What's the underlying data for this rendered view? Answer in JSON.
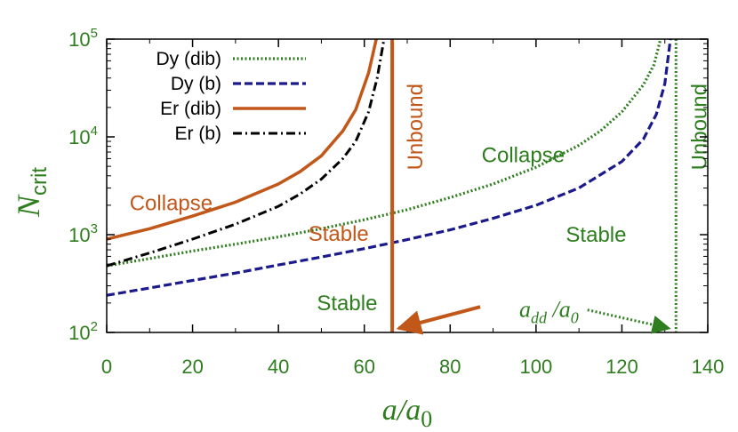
{
  "chart_data": {
    "type": "line",
    "xlabel": "a/a_0",
    "ylabel": "N_crit",
    "xlim": [
      0,
      140
    ],
    "ylim": [
      100,
      100000
    ],
    "yscale": "log",
    "x_ticks": [
      "0",
      "20",
      "40",
      "60",
      "80",
      "100",
      "120",
      "140"
    ],
    "y_ticks": [
      {
        "base": "10",
        "exp": "2"
      },
      {
        "base": "10",
        "exp": "3"
      },
      {
        "base": "10",
        "exp": "4"
      },
      {
        "base": "10",
        "exp": "5"
      }
    ],
    "grid": false,
    "legend_position": "top-left",
    "series": [
      {
        "name": "Dy (dib)",
        "color": "#2e7d1e",
        "dash": "dotted",
        "x": [
          0,
          10,
          20,
          30,
          40,
          50,
          60,
          70,
          80,
          90,
          100,
          110,
          115,
          120,
          125,
          127.5,
          129
        ],
        "y": [
          480,
          570,
          680,
          800,
          950,
          1150,
          1420,
          1800,
          2400,
          3300,
          4900,
          8200,
          11500,
          18000,
          34000,
          55000,
          100000
        ]
      },
      {
        "name": "Dy (b)",
        "color": "#1a1a8c",
        "dash": "dashed",
        "x": [
          0,
          10,
          20,
          30,
          40,
          50,
          60,
          70,
          80,
          90,
          100,
          110,
          120,
          125,
          128,
          130,
          131.3
        ],
        "y": [
          240,
          285,
          340,
          405,
          490,
          590,
          720,
          890,
          1120,
          1470,
          2000,
          3000,
          5600,
          9500,
          17000,
          35000,
          100000
        ]
      },
      {
        "name": "Er (dib)",
        "color": "#c2571a",
        "dash": "solid",
        "x": [
          0,
          10,
          20,
          30,
          40,
          45,
          50,
          55,
          58,
          61,
          62.8
        ],
        "y": [
          900,
          1150,
          1550,
          2150,
          3300,
          4400,
          6400,
          11500,
          19000,
          45000,
          100000
        ]
      },
      {
        "name": "Er (b)",
        "color": "#000000",
        "dash": "dashdot",
        "x": [
          0,
          10,
          20,
          30,
          40,
          45,
          50,
          55,
          58,
          61,
          63,
          64.6
        ],
        "y": [
          480,
          650,
          900,
          1280,
          1950,
          2600,
          3700,
          6000,
          9000,
          18000,
          40000,
          100000
        ]
      }
    ],
    "vertical_lines": [
      {
        "label": "Unbound",
        "x": 66.5,
        "color": "#c2571a",
        "dash": "solid"
      },
      {
        "label": "Unbound",
        "x": 132.6,
        "color": "#2e7d1e",
        "dash": "dotted"
      }
    ],
    "annotations": [
      {
        "text": "Collapse",
        "x": 15,
        "y": 2100,
        "color": "#c2571a"
      },
      {
        "text": "Stable",
        "x": 54,
        "y": 1020,
        "color": "#c2571a"
      },
      {
        "text": "Stable",
        "x": 56,
        "y": 200,
        "color": "#2e7d1e"
      },
      {
        "text": "Collapse",
        "x": 97,
        "y": 6500,
        "color": "#2e7d1e"
      },
      {
        "text": "Stable",
        "x": 114,
        "y": 1000,
        "color": "#2e7d1e"
      }
    ],
    "arrow_label": {
      "main": "a",
      "sub1": "dd",
      "mid": " /a",
      "sub2": "0",
      "x": 103,
      "y": 170
    },
    "arrows": [
      {
        "from": [
          87,
          183
        ],
        "to": [
          68,
          110
        ],
        "color": "#c2571a",
        "dash": "solid"
      },
      {
        "from": [
          112,
          170
        ],
        "to": [
          131,
          110
        ],
        "color": "#2e7d1e",
        "dash": "dotted"
      }
    ],
    "colors": {
      "axis_text": "#2e7d1e",
      "frame": "#000000"
    }
  }
}
